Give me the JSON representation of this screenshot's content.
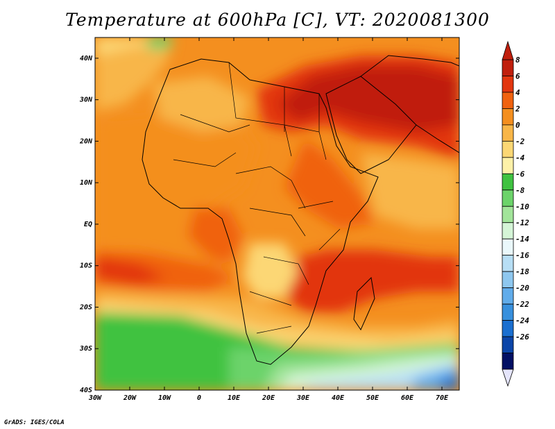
{
  "title": "Temperature at 600hPa [C], VT: 2020081300",
  "credit": "GrADS: IGES/COLA",
  "map": {
    "lat_labels": [
      "40N",
      "30N",
      "20N",
      "10N",
      "EQ",
      "10S",
      "20S",
      "30S",
      "40S"
    ],
    "lon_labels": [
      "30W",
      "20W",
      "10W",
      "0",
      "10E",
      "20E",
      "30E",
      "40E",
      "50E",
      "60E",
      "70E"
    ],
    "lat_range": [
      -40,
      45
    ],
    "lon_range": [
      -30,
      75
    ]
  },
  "colorbar": {
    "labels": [
      "8",
      "6",
      "4",
      "2",
      "0",
      "-2",
      "-4",
      "-6",
      "-8",
      "-10",
      "-12",
      "-14",
      "-16",
      "-18",
      "-20",
      "-22",
      "-24",
      "-26"
    ],
    "colors": [
      "#c01f0d",
      "#e2360f",
      "#f0620f",
      "#f48f1f",
      "#f8b648",
      "#fcd774",
      "#fdf1a8",
      "#3fc241",
      "#6cd36a",
      "#a2e49a",
      "#d5f5d7",
      "#eaf8fb",
      "#b7def5",
      "#8ec7ef",
      "#61acea",
      "#3890dd",
      "#1a6fd0",
      "#0b45a8",
      "#021064"
    ],
    "over_color": "#c01f0d",
    "under_color": "#e5e5fb"
  }
}
